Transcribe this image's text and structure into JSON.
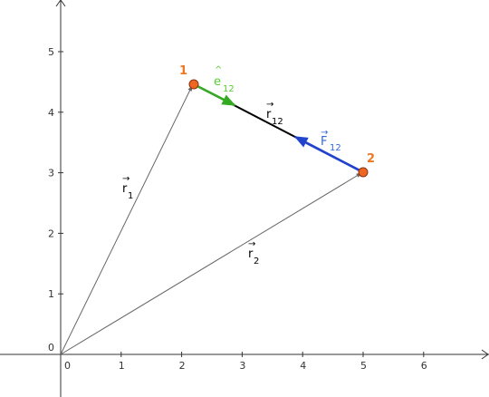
{
  "diagram": {
    "x_ticks": [
      "0",
      "1",
      "2",
      "3",
      "4",
      "5",
      "6"
    ],
    "y_ticks": [
      "0",
      "1",
      "2",
      "3",
      "4",
      "5"
    ],
    "origin": {
      "x": 0,
      "y": 0
    },
    "points": [
      {
        "label": "1",
        "x": 2.2,
        "y": 4.45
      },
      {
        "label": "2",
        "x": 5.0,
        "y": 3.0
      }
    ],
    "vectors": {
      "r1": {
        "main": "r",
        "sub": "1",
        "arrow": "→"
      },
      "r2": {
        "main": "r",
        "sub": "2",
        "arrow": "→"
      },
      "r12": {
        "main": "r",
        "sub": "12",
        "arrow": "→"
      },
      "e12": {
        "main": "e",
        "sub": "12",
        "hat": "^"
      },
      "F12": {
        "main": "F",
        "sub": "12",
        "arrow": "→"
      }
    },
    "colors": {
      "axis": "#333333",
      "r_vectors": "#666666",
      "r12": "#000000",
      "e12": "#33aa22",
      "F12": "#2244cc",
      "F12_label": "#3366dd",
      "e12_label": "#55cc33",
      "point_fill": "#ee6622",
      "point_stroke": "#883311",
      "point_label": "#ee7722"
    }
  }
}
